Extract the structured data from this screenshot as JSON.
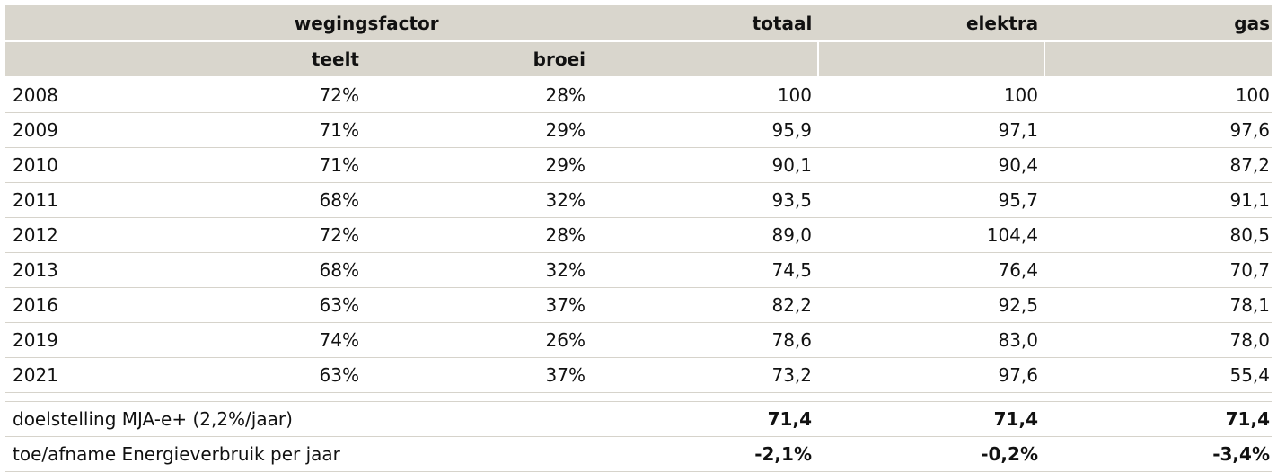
{
  "header": {
    "group_label": "wegingsfactor",
    "teelt": "teelt",
    "broei": "broei",
    "totaal": "totaal",
    "elektra": "elektra",
    "gas": "gas"
  },
  "rows": [
    {
      "year": "2008",
      "teelt": "72%",
      "broei": "28%",
      "totaal": "100",
      "elektra": "100",
      "gas": "100"
    },
    {
      "year": "2009",
      "teelt": "71%",
      "broei": "29%",
      "totaal": "95,9",
      "elektra": "97,1",
      "gas": "97,6"
    },
    {
      "year": "2010",
      "teelt": "71%",
      "broei": "29%",
      "totaal": "90,1",
      "elektra": "90,4",
      "gas": "87,2"
    },
    {
      "year": "2011",
      "teelt": "68%",
      "broei": "32%",
      "totaal": "93,5",
      "elektra": "95,7",
      "gas": "91,1"
    },
    {
      "year": "2012",
      "teelt": "72%",
      "broei": "28%",
      "totaal": "89,0",
      "elektra": "104,4",
      "gas": "80,5"
    },
    {
      "year": "2013",
      "teelt": "68%",
      "broei": "32%",
      "totaal": "74,5",
      "elektra": "76,4",
      "gas": "70,7"
    },
    {
      "year": "2016",
      "teelt": "63%",
      "broei": "37%",
      "totaal": "82,2",
      "elektra": "92,5",
      "gas": "78,1"
    },
    {
      "year": "2019",
      "teelt": "74%",
      "broei": "26%",
      "totaal": "78,6",
      "elektra": "83,0",
      "gas": "78,0"
    },
    {
      "year": "2021",
      "teelt": "63%",
      "broei": "37%",
      "totaal": "73,2",
      "elektra": "97,6",
      "gas": "55,4"
    }
  ],
  "summary": [
    {
      "label": "doelstelling MJA-e+ (2,2%/jaar)",
      "totaal": "71,4",
      "elektra": "71,4",
      "gas": "71,4"
    },
    {
      "label": "toe/afname Energieverbruik per jaar",
      "totaal": "-2,1%",
      "elektra": "-0,2%",
      "gas": "-3,4%"
    }
  ],
  "colors": {
    "header_bg": "#d9d6cd",
    "row_border": "#d6d3cb"
  }
}
